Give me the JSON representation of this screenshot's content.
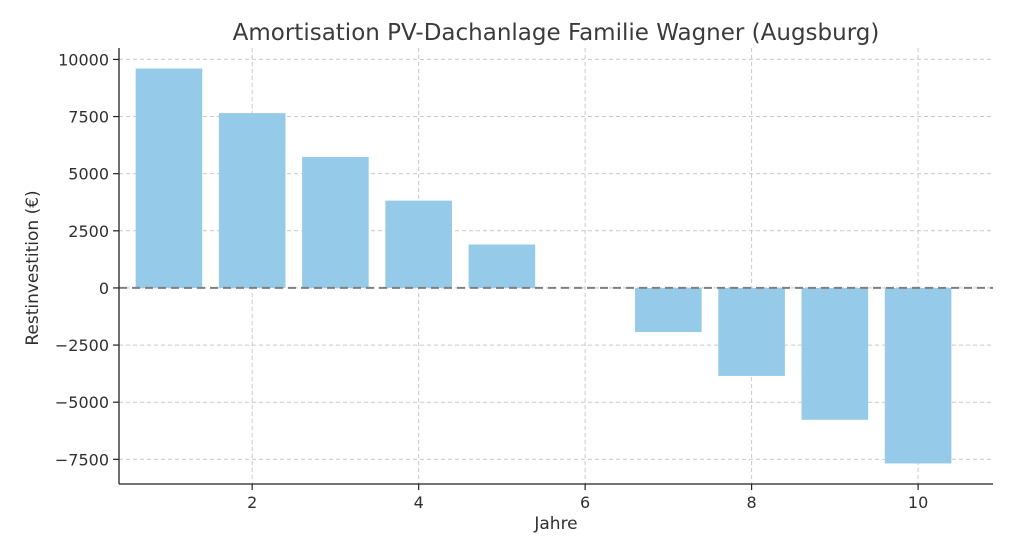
{
  "chart_data": {
    "type": "bar",
    "title": "Amortisation PV-Dachanlage Familie Wagner (Augsburg)",
    "xlabel": "Jahre",
    "ylabel": "Restinvestition (€)",
    "x": [
      1,
      2,
      3,
      4,
      5,
      6,
      7,
      8,
      9,
      10
    ],
    "values": [
      9600,
      7650,
      5730,
      3820,
      1900,
      0,
      -1930,
      -3850,
      -5770,
      -7680
    ],
    "xlim": [
      0.4,
      10.9
    ],
    "ylim": [
      -8580,
      10500
    ],
    "xticks": [
      2,
      4,
      6,
      8,
      10
    ],
    "xtick_labels": [
      "2",
      "4",
      "6",
      "8",
      "10"
    ],
    "yticks": [
      10000,
      7500,
      5000,
      2500,
      0,
      -2500,
      -5000,
      -7500
    ],
    "ytick_labels": [
      "10000",
      "7500",
      "5000",
      "2500",
      "0",
      "−2500",
      "−5000",
      "−7500"
    ],
    "bar_color": "#95cae8",
    "reference_line": {
      "y": 0,
      "style": "dashed",
      "color": "#7f7f7f"
    },
    "grid": true
  }
}
